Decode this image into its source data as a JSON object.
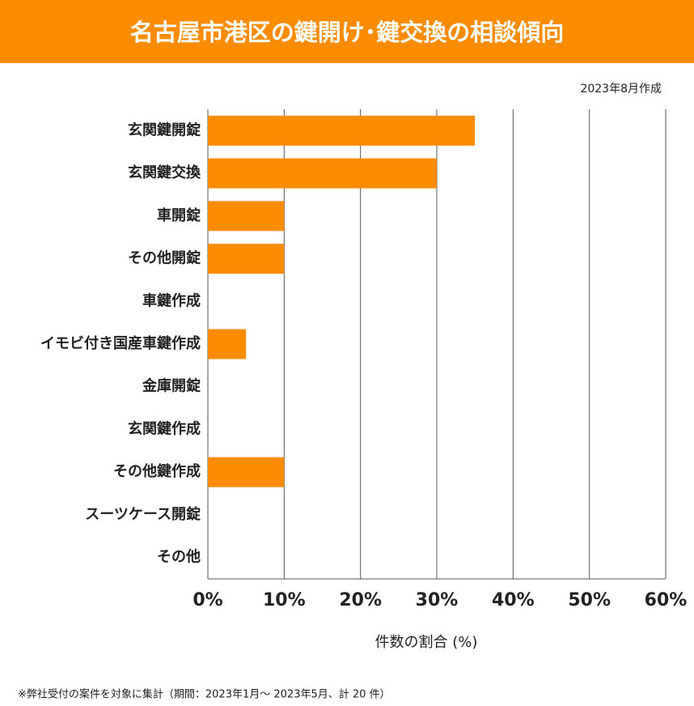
{
  "chart_data": {
    "type": "barh",
    "title": "名古屋市港区の鍵開け･鍵交換の相談傾向",
    "subtitle": "2023年8月作成",
    "x_label": "件数の割合 (%)",
    "footnote": "※弊社受付の案件を対象に集計（期間：2023年1月～ 2023年5月、計 20 件）",
    "categories": [
      "玄関鍵開錠",
      "玄関鍵交換",
      "車開錠",
      "その他開錠",
      "車鍵作成",
      "イモビ付き国産車鍵作成",
      "金庫開錠",
      "玄関鍵作成",
      "その他鍵作成",
      "スーツケース開錠",
      "その他"
    ],
    "values": [
      35,
      30,
      10,
      10,
      0,
      5,
      0,
      0,
      10,
      0,
      0
    ],
    "color": "#fb8c00",
    "xlim": [
      0,
      60
    ],
    "xticks": [
      {
        "value": 0,
        "label": "0%"
      },
      {
        "value": 10,
        "label": "10%"
      },
      {
        "value": 20,
        "label": "20%"
      },
      {
        "value": 30,
        "label": "30%"
      },
      {
        "value": 40,
        "label": "40%"
      },
      {
        "value": 50,
        "label": "50%"
      },
      {
        "value": 60,
        "label": "60%"
      }
    ],
    "grid": true
  }
}
